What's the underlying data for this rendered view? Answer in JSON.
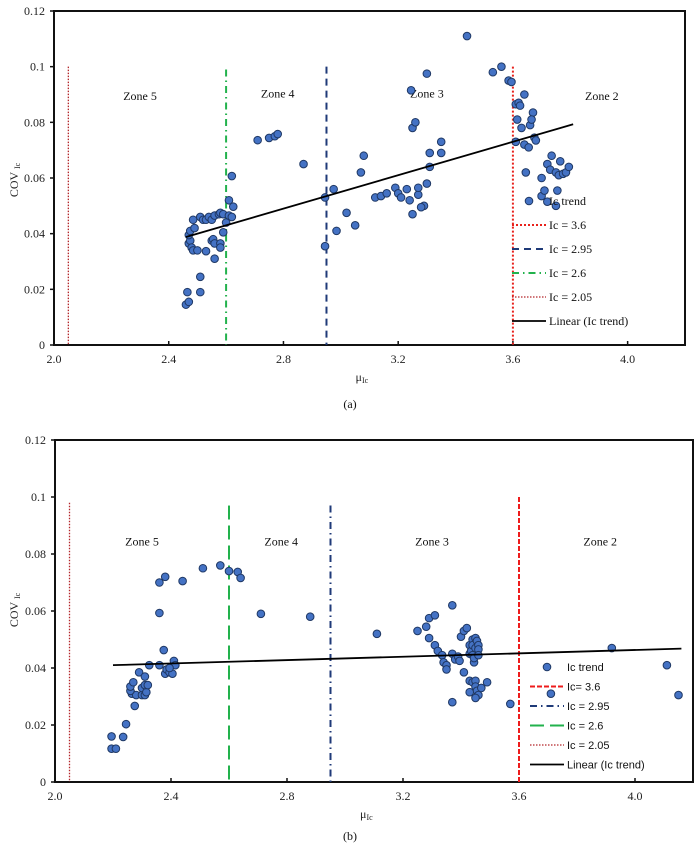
{
  "chart_data": [
    {
      "type": "scatter",
      "panel_label": "(a)",
      "xlabel": "μIc",
      "xlabel_main": "μ",
      "xlabel_sub": "Ic",
      "ylabel": "COV Ic",
      "ylabel_main": "COV",
      "ylabel_sub": "Ic",
      "xlim": [
        2.0,
        4.2
      ],
      "ylim": [
        0,
        0.12
      ],
      "xticks": [
        2.0,
        2.4,
        2.8,
        3.2,
        3.6,
        4.0
      ],
      "xtick_labels": [
        "2.0",
        "2.4",
        "2.8",
        "3.2",
        "3.6",
        "4.0"
      ],
      "yticks": [
        0,
        0.02,
        0.04,
        0.06,
        0.08,
        0.1,
        0.12
      ],
      "ytick_labels": [
        "0",
        "0.02",
        "0.04",
        "0.06",
        "0.08",
        "0.1",
        "0.12"
      ],
      "grid": false,
      "legend_position": "right",
      "zones": [
        {
          "label": "Zone 5",
          "x": 2.3,
          "y": 0.088
        },
        {
          "label": "Zone 4",
          "x": 2.78,
          "y": 0.089
        },
        {
          "label": "Zone 3",
          "x": 3.3,
          "y": 0.089
        },
        {
          "label": "Zone 2",
          "x": 3.91,
          "y": 0.088
        }
      ],
      "vlines": [
        {
          "name": "Ic = 3.6",
          "x": 3.6,
          "ymax": 0.1,
          "color": "#e8221c",
          "style": "dotted"
        },
        {
          "name": "Ic = 2.95",
          "x": 2.95,
          "ymax": 0.1,
          "color": "#1f3a78",
          "style": "dashed"
        },
        {
          "name": "Ic = 2.6",
          "x": 2.6,
          "ymax": 0.099,
          "color": "#22b24c",
          "style": "dashdot"
        },
        {
          "name": "Ic = 2.05",
          "x": 2.05,
          "ymax": 0.1,
          "color": "#b4262a",
          "style": "dotted-fine"
        }
      ],
      "trend": {
        "name": "Linear (Ic trend)",
        "x": [
          2.46,
          3.81
        ],
        "y": [
          0.0388,
          0.0793
        ]
      },
      "series": [
        {
          "name": "Ic trend",
          "color": "#4472c4",
          "points": [
            [
              2.46,
              0.0145
            ],
            [
              2.47,
              0.0155
            ],
            [
              2.465,
              0.019
            ],
            [
              2.51,
              0.019
            ],
            [
              2.51,
              0.0245
            ],
            [
              2.56,
              0.031
            ],
            [
              2.47,
              0.0365
            ],
            [
              2.475,
              0.0375
            ],
            [
              2.48,
              0.035
            ],
            [
              2.485,
              0.034
            ],
            [
              2.5,
              0.034
            ],
            [
              2.53,
              0.0337
            ],
            [
              2.55,
              0.0375
            ],
            [
              2.555,
              0.038
            ],
            [
              2.56,
              0.0365
            ],
            [
              2.58,
              0.0365
            ],
            [
              2.58,
              0.035
            ],
            [
              2.47,
              0.0395
            ],
            [
              2.475,
              0.041
            ],
            [
              2.49,
              0.042
            ],
            [
              2.485,
              0.045
            ],
            [
              2.51,
              0.046
            ],
            [
              2.52,
              0.045
            ],
            [
              2.53,
              0.045
            ],
            [
              2.54,
              0.046
            ],
            [
              2.55,
              0.045
            ],
            [
              2.56,
              0.0465
            ],
            [
              2.575,
              0.047
            ],
            [
              2.58,
              0.0475
            ],
            [
              2.59,
              0.047
            ],
            [
              2.6,
              0.044
            ],
            [
              2.59,
              0.0405
            ],
            [
              2.61,
              0.0465
            ],
            [
              2.62,
              0.046
            ],
            [
              2.61,
              0.052
            ],
            [
              2.625,
              0.0497
            ],
            [
              2.62,
              0.0607
            ],
            [
              2.71,
              0.0736
            ],
            [
              2.75,
              0.0744
            ],
            [
              2.77,
              0.075
            ],
            [
              2.78,
              0.0758
            ],
            [
              2.87,
              0.065
            ],
            [
              2.945,
              0.0355
            ],
            [
              2.945,
              0.053
            ],
            [
              2.975,
              0.056
            ],
            [
              2.985,
              0.041
            ],
            [
              3.02,
              0.0475
            ],
            [
              3.05,
              0.043
            ],
            [
              3.07,
              0.062
            ],
            [
              3.08,
              0.068
            ],
            [
              3.12,
              0.053
            ],
            [
              3.14,
              0.0535
            ],
            [
              3.16,
              0.0545
            ],
            [
              3.19,
              0.0565
            ],
            [
              3.2,
              0.0545
            ],
            [
              3.21,
              0.053
            ],
            [
              3.23,
              0.056
            ],
            [
              3.24,
              0.052
            ],
            [
              3.25,
              0.047
            ],
            [
              3.27,
              0.054
            ],
            [
              3.27,
              0.0565
            ],
            [
              3.29,
              0.05
            ],
            [
              3.3,
              0.058
            ],
            [
              3.31,
              0.064
            ],
            [
              3.31,
              0.069
            ],
            [
              3.28,
              0.0495
            ],
            [
              3.25,
              0.078
            ],
            [
              3.26,
              0.08
            ],
            [
              3.245,
              0.0915
            ],
            [
              3.3,
              0.0975
            ],
            [
              3.35,
              0.073
            ],
            [
              3.35,
              0.069
            ],
            [
              3.44,
              0.111
            ],
            [
              3.53,
              0.098
            ],
            [
              3.56,
              0.1
            ],
            [
              3.585,
              0.095
            ],
            [
              3.595,
              0.0945
            ],
            [
              3.61,
              0.0865
            ],
            [
              3.62,
              0.087
            ],
            [
              3.625,
              0.086
            ],
            [
              3.64,
              0.09
            ],
            [
              3.615,
              0.081
            ],
            [
              3.63,
              0.078
            ],
            [
              3.66,
              0.079
            ],
            [
              3.67,
              0.0835
            ],
            [
              3.665,
              0.081
            ],
            [
              3.61,
              0.073
            ],
            [
              3.64,
              0.072
            ],
            [
              3.655,
              0.071
            ],
            [
              3.675,
              0.0745
            ],
            [
              3.68,
              0.0735
            ],
            [
              3.645,
              0.062
            ],
            [
              3.7,
              0.06
            ],
            [
              3.72,
              0.065
            ],
            [
              3.73,
              0.063
            ],
            [
              3.75,
              0.062
            ],
            [
              3.76,
              0.061
            ],
            [
              3.775,
              0.0615
            ],
            [
              3.785,
              0.062
            ],
            [
              3.795,
              0.064
            ],
            [
              3.7,
              0.0535
            ],
            [
              3.72,
              0.0515
            ],
            [
              3.75,
              0.05
            ],
            [
              3.735,
              0.068
            ],
            [
              3.765,
              0.066
            ],
            [
              3.755,
              0.0555
            ],
            [
              3.71,
              0.0555
            ]
          ]
        }
      ],
      "legend": [
        {
          "label": "Ic trend",
          "kind": "marker"
        },
        {
          "label": "Ic = 3.6",
          "kind": "line",
          "ref": 0
        },
        {
          "label": "Ic = 2.95",
          "kind": "line",
          "ref": 1
        },
        {
          "label": "Ic = 2.6",
          "kind": "line",
          "ref": 2
        },
        {
          "label": "Ic = 2.05",
          "kind": "line",
          "ref": 3
        },
        {
          "label": "Linear (Ic trend)",
          "kind": "trend"
        }
      ]
    },
    {
      "type": "scatter",
      "panel_label": "(b)",
      "xlabel": "μIc",
      "xlabel_main": "μ",
      "xlabel_sub": "Ic",
      "ylabel": "COV Ic",
      "ylabel_main": "COV",
      "ylabel_sub": "Ic",
      "xlim": [
        2.0,
        4.2
      ],
      "ylim": [
        0,
        0.12
      ],
      "xticks": [
        2.0,
        2.4,
        2.8,
        3.2,
        3.6,
        4.0
      ],
      "xtick_labels": [
        "2.0",
        "2.4",
        "2.8",
        "3.2",
        "3.6",
        "4.0"
      ],
      "yticks": [
        0,
        0.02,
        0.04,
        0.06,
        0.08,
        0.1,
        0.12
      ],
      "ytick_labels": [
        "0",
        "0.02",
        "0.04",
        "0.06",
        "0.08",
        "0.1",
        "0.12"
      ],
      "grid": false,
      "legend_position": "bottom-right",
      "zones": [
        {
          "label": "Zone 5",
          "x": 2.3,
          "y": 0.083
        },
        {
          "label": "Zone 4",
          "x": 2.78,
          "y": 0.083
        },
        {
          "label": "Zone 3",
          "x": 3.3,
          "y": 0.083
        },
        {
          "label": "Zone 2",
          "x": 3.88,
          "y": 0.083
        }
      ],
      "vlines": [
        {
          "name": "Ic= 3.6",
          "x": 3.6,
          "ymax": 0.1,
          "color": "#ee1c1c",
          "style": "dashed-red"
        },
        {
          "name": "Ic = 2.95",
          "x": 2.95,
          "ymax": 0.097,
          "color": "#1f3a78",
          "style": "dashdot"
        },
        {
          "name": "Ic = 2.6",
          "x": 2.6,
          "ymax": 0.097,
          "color": "#22b24c",
          "style": "longdash"
        },
        {
          "name": "Ic = 2.05",
          "x": 2.05,
          "ymax": 0.098,
          "color": "#b4262a",
          "style": "dotted-fine"
        }
      ],
      "trend": {
        "name": "Linear (Ic trend)",
        "x": [
          2.2,
          4.16
        ],
        "y": [
          0.041,
          0.0468
        ]
      },
      "series": [
        {
          "name": "Ic trend",
          "color": "#4472c4",
          "points": [
            [
              2.195,
              0.0117
            ],
            [
              2.21,
              0.0117
            ],
            [
              2.195,
              0.016
            ],
            [
              2.235,
              0.0158
            ],
            [
              2.245,
              0.0203
            ],
            [
              2.275,
              0.0267
            ],
            [
              2.265,
              0.031
            ],
            [
              2.28,
              0.0305
            ],
            [
              2.3,
              0.0305
            ],
            [
              2.31,
              0.0305
            ],
            [
              2.26,
              0.032
            ],
            [
              2.26,
              0.0335
            ],
            [
              2.27,
              0.035
            ],
            [
              2.3,
              0.033
            ],
            [
              2.315,
              0.0315
            ],
            [
              2.31,
              0.034
            ],
            [
              2.32,
              0.034
            ],
            [
              2.29,
              0.0385
            ],
            [
              2.31,
              0.037
            ],
            [
              2.325,
              0.041
            ],
            [
              2.36,
              0.041
            ],
            [
              2.375,
              0.0463
            ],
            [
              2.38,
              0.038
            ],
            [
              2.385,
              0.0395
            ],
            [
              2.395,
              0.0385
            ],
            [
              2.405,
              0.038
            ],
            [
              2.41,
              0.0425
            ],
            [
              2.415,
              0.041
            ],
            [
              2.395,
              0.04
            ],
            [
              2.36,
              0.0593
            ],
            [
              2.36,
              0.07
            ],
            [
              2.38,
              0.072
            ],
            [
              2.44,
              0.0705
            ],
            [
              2.51,
              0.075
            ],
            [
              2.57,
              0.076
            ],
            [
              2.6,
              0.074
            ],
            [
              2.63,
              0.0737
            ],
            [
              2.64,
              0.0716
            ],
            [
              2.71,
              0.059
            ],
            [
              2.88,
              0.058
            ],
            [
              3.11,
              0.052
            ],
            [
              3.25,
              0.053
            ],
            [
              3.28,
              0.0545
            ],
            [
              3.29,
              0.0575
            ],
            [
              3.31,
              0.0585
            ],
            [
              3.37,
              0.062
            ],
            [
              3.29,
              0.0505
            ],
            [
              3.31,
              0.048
            ],
            [
              3.32,
              0.046
            ],
            [
              3.335,
              0.0445
            ],
            [
              3.34,
              0.042
            ],
            [
              3.35,
              0.041
            ],
            [
              3.35,
              0.0395
            ],
            [
              3.37,
              0.045
            ],
            [
              3.38,
              0.043
            ],
            [
              3.39,
              0.044
            ],
            [
              3.395,
              0.0425
            ],
            [
              3.4,
              0.051
            ],
            [
              3.41,
              0.053
            ],
            [
              3.42,
              0.054
            ],
            [
              3.43,
              0.048
            ],
            [
              3.43,
              0.045
            ],
            [
              3.44,
              0.05
            ],
            [
              3.435,
              0.046
            ],
            [
              3.44,
              0.0445
            ],
            [
              3.445,
              0.042
            ],
            [
              3.44,
              0.048
            ],
            [
              3.45,
              0.047
            ],
            [
              3.445,
              0.0435
            ],
            [
              3.45,
              0.0505
            ],
            [
              3.455,
              0.0495
            ],
            [
              3.46,
              0.048
            ],
            [
              3.46,
              0.0465
            ],
            [
              3.46,
              0.0445
            ],
            [
              3.41,
              0.0385
            ],
            [
              3.43,
              0.0355
            ],
            [
              3.44,
              0.035
            ],
            [
              3.45,
              0.0355
            ],
            [
              3.45,
              0.0335
            ],
            [
              3.455,
              0.032
            ],
            [
              3.46,
              0.0305
            ],
            [
              3.45,
              0.0295
            ],
            [
              3.43,
              0.0315
            ],
            [
              3.47,
              0.033
            ],
            [
              3.49,
              0.035
            ],
            [
              3.37,
              0.028
            ],
            [
              3.57,
              0.0274
            ],
            [
              3.71,
              0.031
            ],
            [
              3.92,
              0.047
            ],
            [
              4.11,
              0.041
            ],
            [
              4.15,
              0.0305
            ]
          ]
        }
      ],
      "legend": [
        {
          "label": "Ic trend",
          "kind": "marker"
        },
        {
          "label": "Ic= 3.6",
          "kind": "line",
          "ref": 0
        },
        {
          "label": "Ic = 2.95",
          "kind": "line",
          "ref": 1
        },
        {
          "label": "Ic = 2.6",
          "kind": "line",
          "ref": 2
        },
        {
          "label": "Ic = 2.05",
          "kind": "line",
          "ref": 3
        },
        {
          "label": "Linear (Ic trend)",
          "kind": "trend"
        }
      ]
    }
  ]
}
